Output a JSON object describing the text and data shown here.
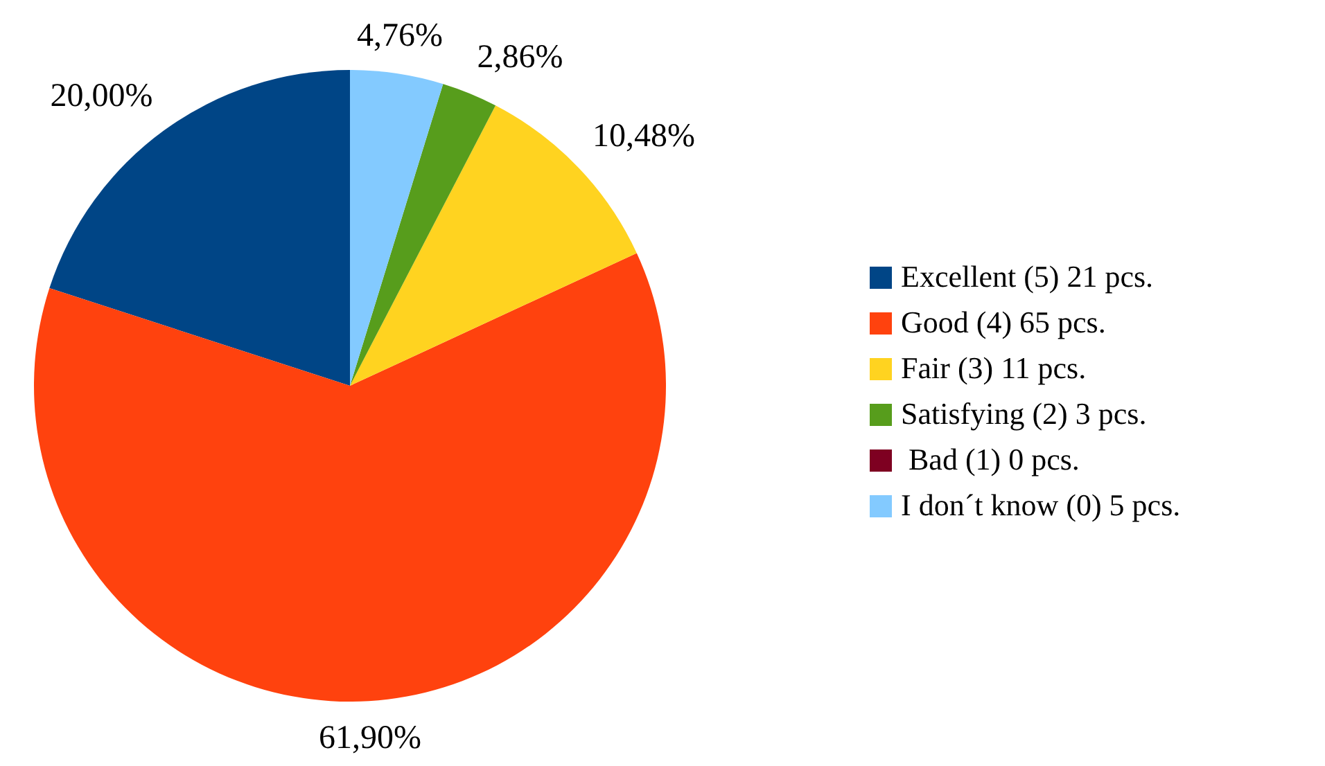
{
  "chart_data": {
    "type": "pie",
    "categories": [
      "Excellent (5) 21 pcs.",
      "Good (4) 65 pcs.",
      "Fair (3) 11 pcs.",
      "Satisfying (2) 3 pcs.",
      " Bad (1) 0 pcs.",
      "I don´t know (0) 5 pcs."
    ],
    "values": [
      20.0,
      61.9,
      10.48,
      2.86,
      0,
      4.76
    ],
    "colors": [
      "#004586",
      "#ff420e",
      "#ffd320",
      "#579d1c",
      "#7e0021",
      "#83caff"
    ],
    "value_labels": [
      "20,00%",
      "61,90%",
      "10,48%",
      "2,86%",
      null,
      "4,76%"
    ],
    "legend": "right"
  }
}
